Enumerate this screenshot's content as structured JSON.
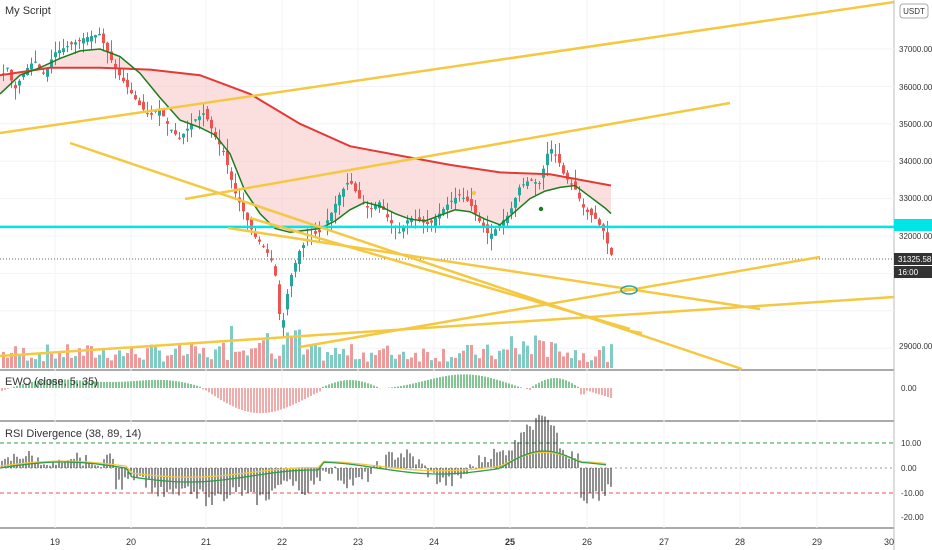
{
  "chart_data": [
    {
      "type": "candlestick",
      "title": "My Script",
      "currency_badge": "USDT",
      "ylim": [
        28500,
        38200
      ],
      "y_ticks": [
        "37000.00",
        "36000.00",
        "35000.00",
        "34000.00",
        "33000.00",
        "32000.00",
        "29000.00"
      ],
      "x_ticks": [
        "19",
        "20",
        "21",
        "22",
        "23",
        "24",
        "25",
        "26",
        "27",
        "28",
        "29",
        "30"
      ],
      "last_price": "31325.58",
      "countdown": "16:00",
      "horizontal_level": 32245,
      "overlays": [
        "ema-short-green",
        "ma-long-red",
        "volume-bars",
        "trendlines-yellow"
      ],
      "colors": {
        "up": "#26a69a",
        "down": "#ef5350",
        "ma_short": "#1b7d1b",
        "ma_long": "#e53935",
        "fill": "#f8c5c5",
        "trend": "#f5c842",
        "level": "#00e5e5"
      }
    },
    {
      "type": "bar",
      "title": "EWO (close, 5, 35)",
      "y_ticks": [
        "0.00"
      ],
      "colors": {
        "pos": "#2e9e4a",
        "neg": "#e57373"
      }
    },
    {
      "type": "bar",
      "title": "RSI Divergence (38, 89, 14)",
      "y_ticks": [
        "10.00",
        "0.00",
        "-10.00",
        "-20.00"
      ],
      "colors": {
        "bar": "#222222",
        "line_green": "#2e9e4a",
        "line_yellow": "#f5c842",
        "level_up": "#2e9e4a",
        "level_down": "#ef5350"
      }
    }
  ]
}
